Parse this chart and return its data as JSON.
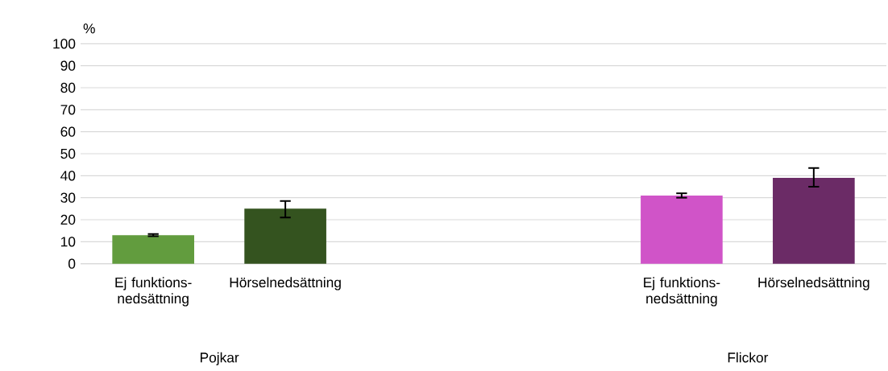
{
  "chart_data": {
    "type": "bar",
    "ylabel": "%",
    "categories": [
      "Ej funktions-nedsättning",
      "Hörselnedsättning",
      null,
      null,
      "Ej funktions-nedsättning",
      "Hörselnedsättning"
    ],
    "values": [
      13,
      25,
      null,
      null,
      31,
      39
    ],
    "errors": [
      [
        12.5,
        13.5
      ],
      [
        21,
        28.5
      ],
      null,
      null,
      [
        30,
        32
      ],
      [
        35,
        43.5
      ]
    ],
    "colors": [
      "#629c3e",
      "#34531f",
      null,
      null,
      "#d054c8",
      "#6b2b66"
    ],
    "ylim": [
      0,
      100
    ],
    "yticks": [
      0,
      10,
      20,
      30,
      40,
      50,
      60,
      70,
      80,
      90,
      100
    ],
    "grid": "y",
    "annotations": [
      "Pojkar",
      "Flickor"
    ]
  }
}
